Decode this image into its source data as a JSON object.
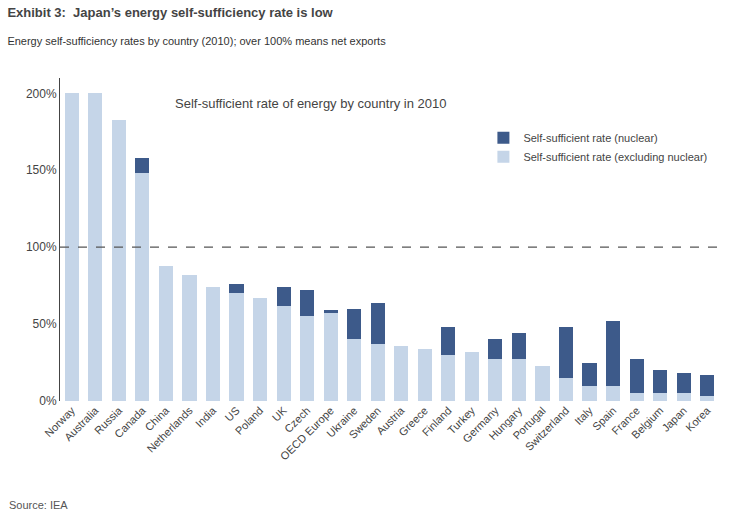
{
  "chart_data": {
    "type": "bar",
    "stacked": true,
    "title": "Exhibit 3:  Japan’s energy self-sufficiency rate is low",
    "subtitle": "Energy self-sufficiency rates by country (2010); over 100% means net exports",
    "annotations": [
      "Self-sufficient rate of energy by country in 2010",
      "Source: IEA"
    ],
    "categories": [
      "Norway",
      "Australia",
      "Russia",
      "Canada",
      "China",
      "Netherlands",
      "India",
      "US",
      "Poland",
      "UK",
      "Czech",
      "OECD Europe",
      "Ukraine",
      "Sweden",
      "Austria",
      "Greece",
      "Finland",
      "Turkey",
      "Germany",
      "Hungary",
      "Portugal",
      "Switzerland",
      "Italy",
      "Spain",
      "France",
      "Belgium",
      "Japan",
      "Korea"
    ],
    "series": [
      {
        "name": "Self-sufficient rate (excluding nuclear)",
        "color": "#c5d5e8",
        "values": [
          200,
          200,
          183,
          148,
          88,
          82,
          74,
          70,
          67,
          62,
          55,
          57,
          40,
          37,
          36,
          34,
          30,
          32,
          27,
          27,
          23,
          15,
          10,
          10,
          5,
          5,
          5,
          3
        ]
      },
      {
        "name": "Self-sufficient rate (nuclear)",
        "color": "#3d5a8a",
        "values": [
          0,
          0,
          0,
          10,
          0,
          0,
          0,
          6,
          0,
          12,
          17,
          2,
          20,
          27,
          0,
          0,
          18,
          0,
          13,
          17,
          0,
          33,
          15,
          42,
          22,
          15,
          13,
          14
        ]
      }
    ],
    "reference_lines": [
      {
        "y": 100,
        "color": "#555555",
        "line_style": "dashed"
      }
    ],
    "ylim": [
      0,
      210
    ],
    "yticks": [
      {
        "value": 0,
        "label": "0%"
      },
      {
        "value": 50,
        "label": "50%"
      },
      {
        "value": 100,
        "label": "100%"
      },
      {
        "value": 150,
        "label": "150%"
      },
      {
        "value": 200,
        "label": "200%"
      }
    ],
    "grid": false,
    "legend": "upper right"
  }
}
